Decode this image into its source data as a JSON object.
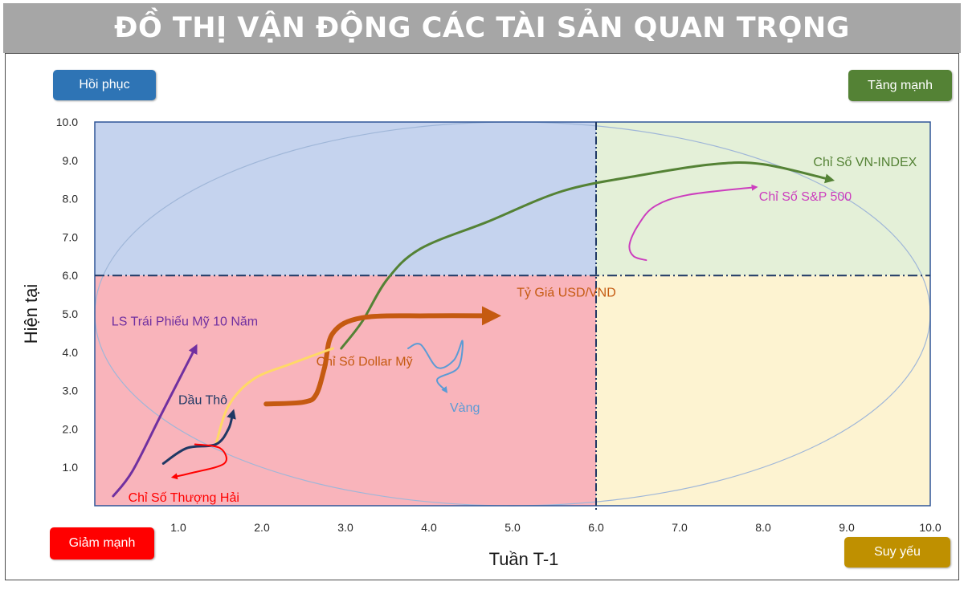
{
  "header": {
    "title": "ĐỒ THỊ VẬN ĐỘNG CÁC TÀI SẢN QUAN TRỌNG"
  },
  "quadrant_buttons": {
    "recovery": {
      "label": "Hồi phục",
      "color": "#2e74b5"
    },
    "strong_up": {
      "label": "Tăng mạnh",
      "color": "#548235"
    },
    "strong_down": {
      "label": "Giảm mạnh",
      "color": "#ff0000"
    },
    "weak": {
      "label": "Suy yếu",
      "color": "#bf9000"
    }
  },
  "chart_data": {
    "type": "line",
    "xlabel": "Tuần T-1",
    "ylabel": "Hiện tại",
    "xlim": [
      0,
      10
    ],
    "ylim": [
      0,
      10
    ],
    "xticks": [
      "1.0",
      "2.0",
      "3.0",
      "4.0",
      "5.0",
      "6.0",
      "7.0",
      "8.0",
      "9.0",
      "10.0"
    ],
    "yticks": [
      "1.0",
      "2.0",
      "3.0",
      "4.0",
      "5.0",
      "6.0",
      "7.0",
      "8.0",
      "9.0",
      "10.0"
    ],
    "divider": {
      "x": 6,
      "y": 6
    },
    "quadrants": [
      {
        "x": [
          0,
          6
        ],
        "y": [
          6,
          10
        ],
        "color": "#c5d3ee"
      },
      {
        "x": [
          6,
          10
        ],
        "y": [
          6,
          10
        ],
        "color": "#e4f0d8"
      },
      {
        "x": [
          0,
          6
        ],
        "y": [
          0,
          6
        ],
        "color": "#f9b4bb"
      },
      {
        "x": [
          6,
          10
        ],
        "y": [
          0,
          6
        ],
        "color": "#fdf3d1"
      }
    ],
    "series": [
      {
        "name": "Chỉ Số VN-INDEX",
        "color": "#548235",
        "width": 3,
        "arrow": true,
        "points": [
          [
            2.95,
            4.1
          ],
          [
            3.2,
            4.8
          ],
          [
            3.5,
            5.9
          ],
          [
            3.9,
            6.7
          ],
          [
            4.7,
            7.4
          ],
          [
            5.6,
            8.2
          ],
          [
            6.5,
            8.6
          ],
          [
            7.4,
            8.9
          ],
          [
            8.0,
            8.9
          ],
          [
            8.8,
            8.5
          ]
        ],
        "label_pos": [
          8.6,
          8.85
        ]
      },
      {
        "name": "Chỉ Số S&P 500",
        "color": "#cc3ebe",
        "width": 2,
        "arrow": true,
        "points": [
          [
            6.6,
            6.4
          ],
          [
            6.45,
            6.5
          ],
          [
            6.4,
            6.8
          ],
          [
            6.5,
            7.3
          ],
          [
            6.7,
            7.8
          ],
          [
            7.1,
            8.1
          ],
          [
            7.9,
            8.3
          ]
        ],
        "label_pos": [
          7.95,
          7.95
        ]
      },
      {
        "name": "Tỷ Giá USD/VND",
        "color": "#c55a11",
        "width": 6,
        "arrow": true,
        "points": [
          [
            2.05,
            2.65
          ],
          [
            2.5,
            2.7
          ],
          [
            2.65,
            2.9
          ],
          [
            2.75,
            3.6
          ],
          [
            2.85,
            4.5
          ],
          [
            3.2,
            4.9
          ],
          [
            4.0,
            4.95
          ],
          [
            4.75,
            4.95
          ]
        ],
        "label_pos": [
          5.05,
          5.45
        ]
      },
      {
        "name": "Chỉ Số Dollar Mỹ",
        "color": "#ffd966",
        "width": 3,
        "arrow": false,
        "points": [
          [
            1.45,
            1.6
          ],
          [
            1.6,
            2.6
          ],
          [
            1.9,
            3.3
          ],
          [
            2.35,
            3.7
          ],
          [
            2.85,
            4.1
          ]
        ],
        "label_pos": [
          2.65,
          3.65
        ]
      },
      {
        "name": "Vàng",
        "color": "#5b9bd5",
        "width": 2,
        "arrow": true,
        "points": [
          [
            3.75,
            4.1
          ],
          [
            3.9,
            4.2
          ],
          [
            4.1,
            3.6
          ],
          [
            4.3,
            3.8
          ],
          [
            4.4,
            4.3
          ],
          [
            4.35,
            3.6
          ],
          [
            4.1,
            3.3
          ],
          [
            4.2,
            3.0
          ]
        ],
        "label_pos": [
          4.25,
          2.45
        ]
      },
      {
        "name": "Dầu Thô",
        "color": "#1f3864",
        "width": 3,
        "arrow": true,
        "points": [
          [
            0.82,
            1.1
          ],
          [
            1.1,
            1.5
          ],
          [
            1.45,
            1.6
          ],
          [
            1.6,
            2.0
          ],
          [
            1.65,
            2.4
          ]
        ],
        "label_pos": [
          1.0,
          2.65
        ]
      },
      {
        "name": "Chỉ Số Thượng Hải",
        "color": "#ff0000",
        "width": 2,
        "arrow": true,
        "points": [
          [
            1.2,
            1.6
          ],
          [
            1.5,
            1.5
          ],
          [
            1.55,
            1.1
          ],
          [
            1.15,
            0.85
          ],
          [
            0.95,
            0.75
          ]
        ],
        "label_pos": [
          0.4,
          0.1
        ]
      },
      {
        "name": "LS Trái Phiếu Mỹ 10 Năm",
        "color": "#7030a0",
        "width": 3,
        "arrow": true,
        "points": [
          [
            0.22,
            0.25
          ],
          [
            0.45,
            0.9
          ],
          [
            0.8,
            2.4
          ],
          [
            1.2,
            4.1
          ]
        ],
        "label_pos": [
          0.2,
          4.7
        ]
      }
    ]
  }
}
